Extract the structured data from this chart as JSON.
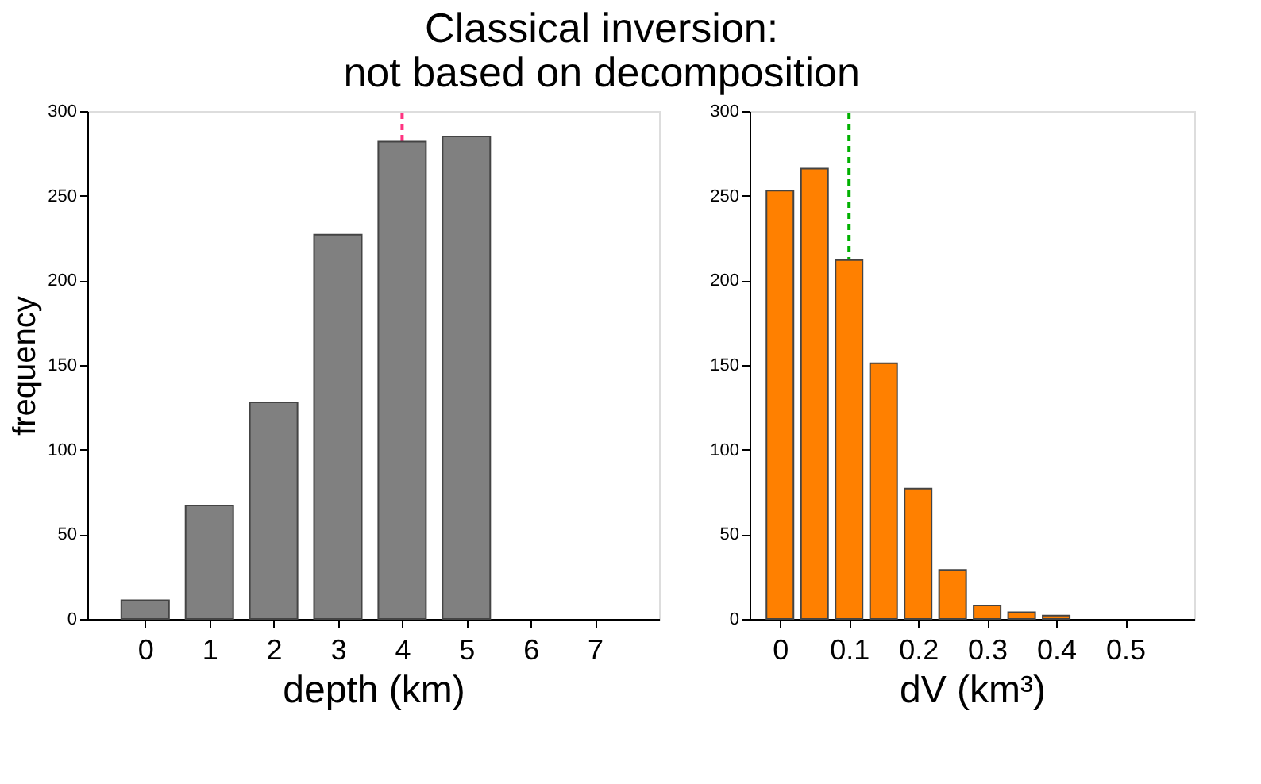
{
  "chart_data": [
    {
      "type": "bar",
      "title": "Classical inversion:\nnot based on decomposition",
      "xlabel": "depth (km)",
      "ylabel": "frequency",
      "x": [
        0,
        1,
        2,
        3,
        4,
        5
      ],
      "series": [
        {
          "color": "#808080",
          "values": [
            11,
            67,
            128,
            227,
            282,
            285
          ]
        }
      ],
      "xlim": [
        -0.9,
        8
      ],
      "xticks": [
        0,
        1,
        2,
        3,
        4,
        5,
        6,
        7
      ],
      "ylim": [
        0,
        300
      ],
      "yticks": [
        0,
        50,
        100,
        150,
        200,
        250,
        300
      ],
      "ref_lines": [
        {
          "axis": "x",
          "value": 4,
          "color": "#ff3380",
          "line_style": "dashed"
        }
      ]
    },
    {
      "type": "bar",
      "xlabel": "dV (km³)",
      "x": [
        0,
        0.05,
        0.1,
        0.15,
        0.2,
        0.25,
        0.3,
        0.35,
        0.4
      ],
      "series": [
        {
          "color": "#ff8000",
          "values": [
            253,
            266,
            212,
            151,
            77,
            29,
            8,
            4,
            2
          ]
        }
      ],
      "xlim": [
        -0.044,
        0.6
      ],
      "xticks": [
        0,
        0.1,
        0.2,
        0.3,
        0.4,
        0.5
      ],
      "ylim": [
        0,
        300
      ],
      "yticks": [
        0,
        50,
        100,
        150,
        200,
        250,
        300
      ],
      "ref_lines": [
        {
          "axis": "x",
          "value": 0.1,
          "color": "#00b000",
          "line_style": "dashed"
        }
      ]
    }
  ]
}
